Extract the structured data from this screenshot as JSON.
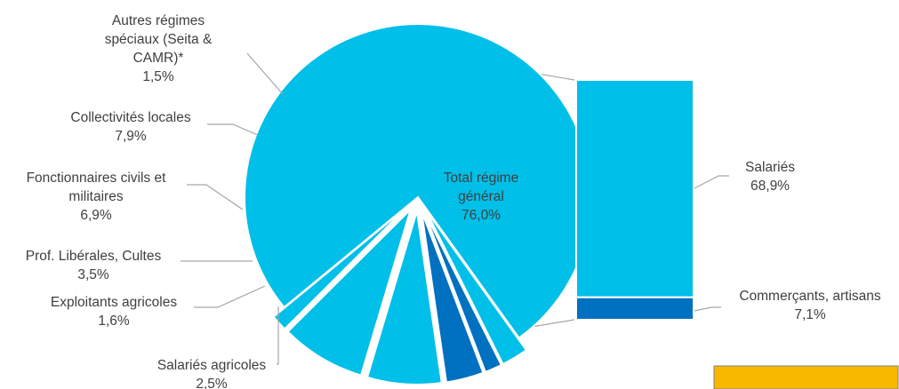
{
  "chart_data": {
    "type": "bar-of-pie",
    "colors": {
      "light": "#00bfe8",
      "dark": "#0070c0",
      "leader": "#a6a6a6",
      "box": "#f9b800"
    },
    "pie": {
      "slices": [
        {
          "id": "total-regime-general",
          "lines": [
            "Total régime",
            "général"
          ],
          "value_label": "76,0%",
          "value": 76.0,
          "color": "#00bfe8",
          "exploded": false
        },
        {
          "id": "salaries-agricoles",
          "lines": [
            "Salariés agricoles"
          ],
          "value_label": "2,5%",
          "value": 2.5,
          "color": "#00bfe8",
          "exploded": true
        },
        {
          "id": "exploitants-agricoles",
          "lines": [
            "Exploitants agricoles"
          ],
          "value_label": "1,6%",
          "value": 1.6,
          "color": "#0070c0",
          "exploded": true
        },
        {
          "id": "prof-liberales-cultes",
          "lines": [
            "Prof. Libérales, Cultes"
          ],
          "value_label": "3,5%",
          "value": 3.5,
          "color": "#0070c0",
          "exploded": true
        },
        {
          "id": "fonctionnaires",
          "lines": [
            "Fonctionnaires civils et",
            "militaires"
          ],
          "value_label": "6,9%",
          "value": 6.9,
          "color": "#00bfe8",
          "exploded": true
        },
        {
          "id": "collectivites-locales",
          "lines": [
            "Collectivités locales"
          ],
          "value_label": "7,9%",
          "value": 7.9,
          "color": "#00bfe8",
          "exploded": true
        },
        {
          "id": "autres-regimes",
          "lines": [
            "Autres régimes",
            "spéciaux (Seita &",
            "CAMR)*"
          ],
          "value_label": "1,5%",
          "value": 1.5,
          "color": "#00bfe8",
          "exploded": true
        }
      ]
    },
    "bar": {
      "segments": [
        {
          "id": "salaries",
          "lines": [
            "Salariés"
          ],
          "value_label": "68,9%",
          "value": 68.9,
          "color": "#00bfe8"
        },
        {
          "id": "commercants-artisans",
          "lines": [
            "Commerçants, artisans"
          ],
          "value_label": "7,1%",
          "value": 7.1,
          "color": "#0070c0"
        }
      ]
    }
  }
}
